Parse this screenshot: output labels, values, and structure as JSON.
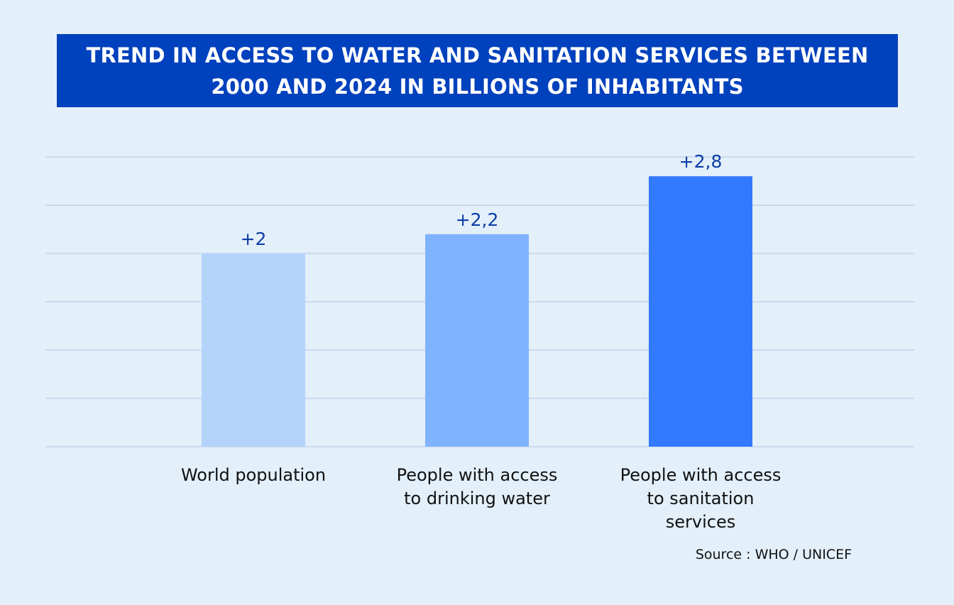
{
  "chart_data": {
    "type": "bar",
    "title": "TREND IN ACCESS TO WATER AND SANITATION SERVICES BETWEEN 2000 AND 2024 IN BILLIONS OF INHABITANTS",
    "categories": [
      "World population",
      "People with access to drinking water",
      "People with access to sanitation services"
    ],
    "category_lines": [
      [
        "World population"
      ],
      [
        "People with access",
        "to drinking water"
      ],
      [
        "People with access",
        "to sanitation",
        "services"
      ]
    ],
    "values": [
      2,
      2.2,
      2.8
    ],
    "data_labels": [
      "+2",
      "+2,2",
      "+2,8"
    ],
    "colors": [
      "#b3d3fb",
      "#80b3fd",
      "#3279fe"
    ],
    "xlabel": "",
    "ylabel": "",
    "ylim": [
      0,
      3
    ],
    "grid": true,
    "gridline_count": 6,
    "source": "Source : WHO / UNICEF"
  },
  "colors": {
    "background": "#e3eff9",
    "title_bg": "#0041bd",
    "gridline": "#b8cfe9",
    "label": "#0b3ea8"
  }
}
